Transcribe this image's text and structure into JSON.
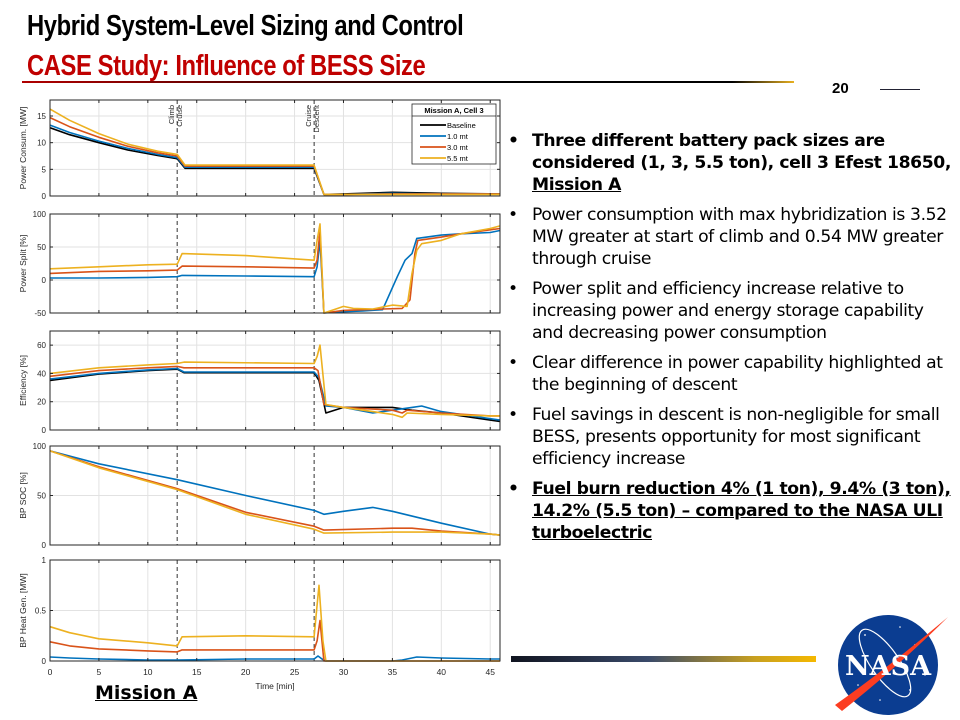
{
  "header": {
    "title": "Hybrid System-Level Sizing and Control",
    "subtitle": "CASE Study: Influence of BESS Size",
    "page_number": "20"
  },
  "bullets": [
    {
      "text_plain": "Three different battery pack sizes are considered (1, 3, 5.5 ton), cell 3 Efest 18650, ",
      "text_underlined": "Mission A",
      "bold": true
    },
    {
      "text_plain": "Power consumption with max hybridization is 3.52 MW greater at start of climb and 0.54 MW greater through cruise",
      "bold": false
    },
    {
      "text_plain": "Power split and efficiency increase relative to increasing power and energy storage capability and decreasing power consumption",
      "bold": false
    },
    {
      "text_plain": "Clear difference in power capability highlighted at the beginning of descent",
      "bold": false
    },
    {
      "text_plain": "Fuel savings in descent is non-negligible for small BESS, presents opportunity for most significant efficiency increase",
      "bold": false
    },
    {
      "text_underlined": "Fuel burn reduction 4% (1 ton), 9.4% (3 ton), 14.2% (5.5 ton) – compared to the NASA ULI turboelectric",
      "bold": true
    }
  ],
  "bullet_glyph": "•",
  "mission_label": "Mission A",
  "logo": {
    "text": "NASA",
    "name": "nasa-meatball-logo"
  },
  "chart_data": {
    "type": "line",
    "title": "",
    "xlabel": "Time [min]",
    "xlim": [
      0,
      46
    ],
    "xticks": [
      0,
      5,
      10,
      15,
      20,
      25,
      30,
      35,
      40,
      45
    ],
    "grid": true,
    "phase_markers": [
      {
        "x": 13,
        "labels": [
          "Climb",
          "Cruise"
        ]
      },
      {
        "x": 27,
        "labels": [
          "Cruise",
          "Descent"
        ]
      }
    ],
    "legend": {
      "title": "Mission A, Cell 3",
      "placement": "top-right of first subplot",
      "entries": [
        "Baseline",
        "1.0 mt",
        "3.0 mt",
        "5.5 mt"
      ]
    },
    "series_colors": {
      "Baseline": "#000000",
      "1.0 mt": "#0072bd",
      "3.0 mt": "#d95319",
      "5.5 mt": "#edb120"
    },
    "subplots": [
      {
        "ylabel": "Power Consum. [MW]",
        "ylim": [
          0,
          18
        ],
        "yticks": [
          0,
          5,
          10,
          15
        ],
        "series": [
          {
            "name": "Baseline",
            "x": [
              0,
              2,
              5,
              8,
              11,
              13,
              13.8,
              27,
              28,
              30,
              35,
              40,
              46
            ],
            "y": [
              12.8,
              11.5,
              10.0,
              8.6,
              7.6,
              7.0,
              5.2,
              5.2,
              0.3,
              0.4,
              0.7,
              0.5,
              0.4
            ]
          },
          {
            "name": "1.0 mt",
            "x": [
              0,
              2,
              5,
              8,
              11,
              13,
              13.8,
              27,
              28,
              30,
              35,
              40,
              46
            ],
            "y": [
              13.3,
              11.9,
              10.3,
              8.9,
              7.8,
              7.2,
              5.4,
              5.4,
              0.3,
              0.3,
              0.5,
              0.4,
              0.4
            ]
          },
          {
            "name": "3.0 mt",
            "x": [
              0,
              2,
              5,
              8,
              11,
              13,
              13.8,
              27,
              28,
              30,
              35,
              40,
              46
            ],
            "y": [
              14.7,
              13.0,
              11.0,
              9.3,
              8.1,
              7.5,
              5.6,
              5.6,
              0.3,
              0.3,
              0.4,
              0.4,
              0.4
            ]
          },
          {
            "name": "5.5 mt",
            "x": [
              0,
              2,
              5,
              8,
              11,
              13,
              13.8,
              27,
              28,
              30,
              35,
              40,
              46
            ],
            "y": [
              16.3,
              14.2,
              11.7,
              9.7,
              8.4,
              7.8,
              5.8,
              5.8,
              0.3,
              0.3,
              0.3,
              0.3,
              0.3
            ]
          }
        ]
      },
      {
        "ylabel": "Power Split [%]",
        "ylim": [
          -50,
          100
        ],
        "yticks": [
          -50,
          0,
          50,
          100
        ],
        "series": [
          {
            "name": "1.0 mt",
            "x": [
              0,
              5,
              10,
              13,
              13.5,
              20,
              27,
              27.3,
              27.6,
              28,
              30,
              32,
              34,
              35.5,
              36.3,
              37,
              37.5,
              40,
              42,
              45,
              46
            ],
            "y": [
              3,
              3,
              4,
              5,
              7,
              6,
              5,
              20,
              60,
              -50,
              -48,
              -47,
              -45,
              5,
              30,
              40,
              63,
              68,
              70,
              72,
              75
            ]
          },
          {
            "name": "3.0 mt",
            "x": [
              0,
              5,
              10,
              13,
              13.5,
              20,
              27,
              27.3,
              27.6,
              28,
              30,
              32,
              34,
              36,
              36.8,
              37.3,
              37.6,
              40,
              42,
              45,
              46
            ],
            "y": [
              10,
              13,
              14,
              15,
              21,
              20,
              18,
              30,
              75,
              -50,
              -46,
              -45,
              -44,
              -43,
              -30,
              40,
              60,
              65,
              70,
              76,
              78
            ]
          },
          {
            "name": "5.5 mt",
            "x": [
              0,
              5,
              10,
              13,
              13.5,
              20,
              27,
              27.3,
              27.6,
              28,
              29,
              30,
              31,
              33,
              35,
              36.5,
              37,
              37.5,
              38,
              40,
              42,
              45,
              46
            ],
            "y": [
              17,
              20,
              23,
              24,
              40,
              37,
              30,
              60,
              85,
              -50,
              -45,
              -40,
              -43,
              -44,
              -38,
              -40,
              10,
              45,
              55,
              60,
              70,
              78,
              82
            ]
          }
        ]
      },
      {
        "ylabel": "Efficiency [%]",
        "ylim": [
          0,
          70
        ],
        "yticks": [
          0,
          20,
          40,
          60
        ],
        "series": [
          {
            "name": "Baseline",
            "x": [
              0,
              5,
              10,
              13,
              13.7,
              27,
              27.5,
              28.2,
              30,
              35,
              37,
              40,
              45,
              46
            ],
            "y": [
              35,
              39.5,
              42,
              43,
              40.5,
              40.5,
              35,
              12,
              16,
              16,
              14,
              12,
              7,
              6
            ]
          },
          {
            "name": "1.0 mt",
            "x": [
              0,
              5,
              10,
              13,
              13.7,
              27,
              27.5,
              28.2,
              30,
              33,
              35,
              37,
              38,
              40,
              45,
              46
            ],
            "y": [
              36,
              40,
              42.5,
              43.5,
              41,
              41,
              37,
              17,
              16,
              12,
              14,
              16,
              17,
              13,
              8,
              7
            ]
          },
          {
            "name": "3.0 mt",
            "x": [
              0,
              5,
              10,
              13,
              13.7,
              27,
              27.4,
              28,
              30,
              35,
              36,
              36.5,
              40,
              45,
              46
            ],
            "y": [
              38,
              42,
              44,
              45,
              44,
              44,
              42,
              18,
              16,
              14,
              12,
              14,
              12,
              10,
              10
            ]
          },
          {
            "name": "5.5 mt",
            "x": [
              0,
              5,
              10,
              13,
              13.7,
              27,
              27.3,
              27.6,
              28.2,
              30,
              33,
              35,
              36,
              36.5,
              40,
              45,
              46
            ],
            "y": [
              40,
              44,
              46,
              47,
              48,
              47,
              52,
              60,
              18,
              16,
              13,
              11,
              9,
              12,
              11,
              10,
              10
            ]
          }
        ]
      },
      {
        "ylabel": "BP SOC [%]",
        "ylim": [
          0,
          100
        ],
        "yticks": [
          0,
          50,
          100
        ],
        "series": [
          {
            "name": "1.0 mt",
            "x": [
              0,
              5,
              13,
              20,
              27,
              28,
              30,
              33,
              35,
              40,
              45,
              46
            ],
            "y": [
              95,
              82,
              66,
              50,
              35,
              31,
              34,
              38,
              34,
              22,
              11,
              10
            ]
          },
          {
            "name": "3.0 mt",
            "x": [
              0,
              5,
              13,
              20,
              27,
              28,
              35,
              37,
              40,
              45,
              46
            ],
            "y": [
              95,
              79,
              57,
              33,
              19,
              15,
              17,
              17,
              14,
              11,
              10
            ]
          },
          {
            "name": "5.5 mt",
            "x": [
              0,
              5,
              13,
              20,
              27,
              28,
              35,
              40,
              45,
              46
            ],
            "y": [
              95,
              78,
              56,
              31,
              16,
              12,
              13,
              13,
              11,
              10
            ]
          }
        ]
      },
      {
        "ylabel": "BP Heat Gen. [MW]",
        "ylim": [
          0,
          1
        ],
        "yticks": [
          0,
          0.5,
          1
        ],
        "series": [
          {
            "name": "1.0 mt",
            "x": [
              0,
              2,
              5,
              10,
              13,
              20,
              27,
              27.4,
              27.8,
              28.2,
              35,
              36,
              37.5,
              40,
              45,
              46
            ],
            "y": [
              0.04,
              0.03,
              0.02,
              0.01,
              0.01,
              0.02,
              0.02,
              0.05,
              0.02,
              0.0,
              0.0,
              0.01,
              0.04,
              0.03,
              0.02,
              0.02
            ]
          },
          {
            "name": "3.0 mt",
            "x": [
              0,
              2,
              5,
              10,
              13,
              13.5,
              20,
              27,
              27.3,
              27.6,
              28,
              35,
              40,
              46
            ],
            "y": [
              0.19,
              0.15,
              0.12,
              0.1,
              0.09,
              0.11,
              0.11,
              0.11,
              0.2,
              0.4,
              0.0,
              0.0,
              0.0,
              0.0
            ]
          },
          {
            "name": "5.5 mt",
            "x": [
              0,
              2,
              5,
              10,
              13,
              13.5,
              20,
              27,
              27.2,
              27.5,
              27.9,
              28.2,
              35,
              40,
              46
            ],
            "y": [
              0.34,
              0.28,
              0.22,
              0.18,
              0.15,
              0.24,
              0.25,
              0.24,
              0.45,
              0.75,
              0.2,
              0.0,
              0.0,
              0.0,
              0.0
            ]
          }
        ]
      }
    ]
  }
}
